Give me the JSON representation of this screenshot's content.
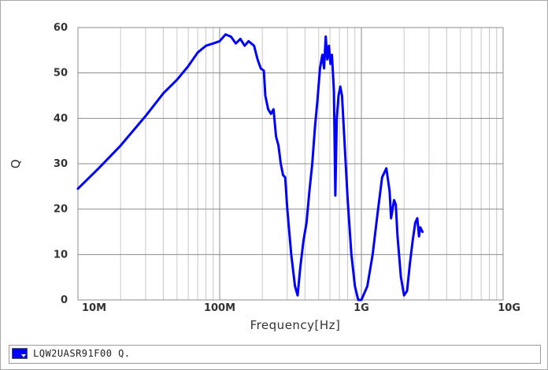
{
  "chart_data": {
    "type": "line",
    "xlabel": "Frequency[Hz]",
    "ylabel": "Q",
    "x_scale": "log",
    "xlim": [
      10000000,
      10000000000
    ],
    "ylim": [
      0,
      60
    ],
    "x_ticks": [
      {
        "value": 10000000,
        "label": "10M"
      },
      {
        "value": 100000000,
        "label": "100M"
      },
      {
        "value": 1000000000,
        "label": "1G"
      },
      {
        "value": 10000000000,
        "label": "10G"
      }
    ],
    "y_ticks": [
      0,
      10,
      20,
      30,
      40,
      50,
      60
    ],
    "grid": true,
    "legend_position": "bottom",
    "series": [
      {
        "name": "LQW2UASR91F00 Q.",
        "color": "#0000ff",
        "points": [
          [
            10000000,
            24.5
          ],
          [
            14000000,
            29
          ],
          [
            20000000,
            34
          ],
          [
            30000000,
            40.5
          ],
          [
            40000000,
            45.5
          ],
          [
            50000000,
            48.5
          ],
          [
            60000000,
            51.5
          ],
          [
            70000000,
            54.5
          ],
          [
            80000000,
            56
          ],
          [
            90000000,
            56.5
          ],
          [
            100000000,
            57
          ],
          [
            110000000,
            58.5
          ],
          [
            120000000,
            58
          ],
          [
            130000000,
            56.5
          ],
          [
            140000000,
            57.5
          ],
          [
            150000000,
            56
          ],
          [
            160000000,
            57
          ],
          [
            175000000,
            56
          ],
          [
            185000000,
            53
          ],
          [
            195000000,
            51
          ],
          [
            205000000,
            50.5
          ],
          [
            210000000,
            45
          ],
          [
            220000000,
            42
          ],
          [
            230000000,
            41
          ],
          [
            240000000,
            42
          ],
          [
            250000000,
            36
          ],
          [
            260000000,
            34
          ],
          [
            270000000,
            30
          ],
          [
            280000000,
            27.5
          ],
          [
            290000000,
            27
          ],
          [
            300000000,
            20
          ],
          [
            320000000,
            10
          ],
          [
            340000000,
            3
          ],
          [
            355000000,
            1
          ],
          [
            370000000,
            7
          ],
          [
            390000000,
            13
          ],
          [
            410000000,
            17
          ],
          [
            430000000,
            24
          ],
          [
            450000000,
            30
          ],
          [
            470000000,
            38
          ],
          [
            490000000,
            44
          ],
          [
            510000000,
            51
          ],
          [
            530000000,
            54
          ],
          [
            545000000,
            51
          ],
          [
            560000000,
            58
          ],
          [
            575000000,
            53
          ],
          [
            590000000,
            56
          ],
          [
            605000000,
            52
          ],
          [
            620000000,
            54
          ],
          [
            640000000,
            46
          ],
          [
            655000000,
            23
          ],
          [
            670000000,
            40
          ],
          [
            690000000,
            45
          ],
          [
            710000000,
            47
          ],
          [
            730000000,
            45
          ],
          [
            760000000,
            35
          ],
          [
            800000000,
            22
          ],
          [
            850000000,
            10
          ],
          [
            900000000,
            3
          ],
          [
            950000000,
            0
          ],
          [
            1000000000,
            0
          ],
          [
            1100000000,
            3
          ],
          [
            1200000000,
            10
          ],
          [
            1300000000,
            19
          ],
          [
            1400000000,
            27
          ],
          [
            1500000000,
            29
          ],
          [
            1580000000,
            24
          ],
          [
            1620000000,
            18
          ],
          [
            1700000000,
            22
          ],
          [
            1750000000,
            21
          ],
          [
            1800000000,
            14
          ],
          [
            1900000000,
            5
          ],
          [
            2000000000,
            1
          ],
          [
            2100000000,
            2
          ],
          [
            2200000000,
            8
          ],
          [
            2300000000,
            13
          ],
          [
            2400000000,
            17
          ],
          [
            2480000000,
            18
          ],
          [
            2550000000,
            14
          ],
          [
            2600000000,
            16
          ],
          [
            2700000000,
            15
          ]
        ]
      }
    ]
  }
}
